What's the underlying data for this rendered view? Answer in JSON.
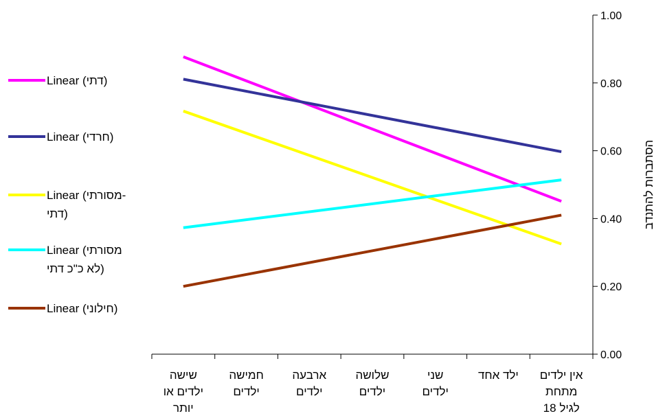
{
  "chart_data": {
    "type": "line",
    "title": "",
    "xlabel": "",
    "ylabel": "הסתברות להתנדב",
    "ylim": [
      0,
      1
    ],
    "yticks": [
      "0.00",
      "0.20",
      "0.40",
      "0.60",
      "0.80",
      "1.00"
    ],
    "y_axis_position": "right",
    "grid": false,
    "legend_position": "left",
    "categories": [
      [
        "שישה",
        "ילדים או",
        "יותר"
      ],
      [
        "חמישה",
        "ילדים"
      ],
      [
        "ארבעה",
        "ילדים"
      ],
      [
        "שלושה",
        "ילדים"
      ],
      [
        "שני",
        "ילדים"
      ],
      [
        "ילד אחד"
      ],
      [
        "אין ילדים",
        "מתחת",
        "לגיל 18"
      ]
    ],
    "series": [
      {
        "name": [
          "Linear (דתי)"
        ],
        "color": "#ff00ff",
        "start": 0.877,
        "end": 0.451
      },
      {
        "name": [
          "Linear (חרדי)"
        ],
        "color": "#333399",
        "start": 0.811,
        "end": 0.597
      },
      {
        "name": [
          "Linear (מסורתי-",
          "דתי)"
        ],
        "color": "#ffff00",
        "start": 0.717,
        "end": 0.325
      },
      {
        "name": [
          "Linear (מסורתי",
          "לא כ\"כ דתי)"
        ],
        "color": "#00ffff",
        "start": 0.373,
        "end": 0.514
      },
      {
        "name": [
          "Linear (חילוני)"
        ],
        "color": "#993300",
        "start": 0.2,
        "end": 0.41
      }
    ]
  }
}
